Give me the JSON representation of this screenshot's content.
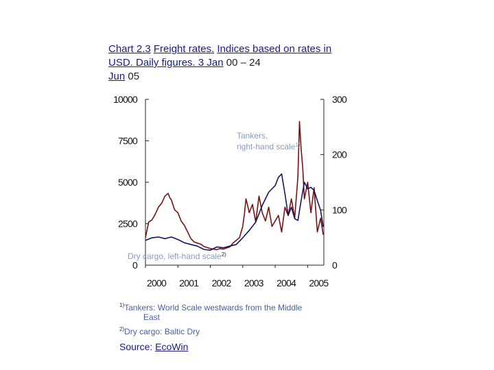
{
  "title": {
    "part1": "Chart 2.3",
    "part2": "Freight rates.",
    "part3": "Indices based on rates in USD. Daily figures. 3 Jan",
    "part4": "00 – 24",
    "part5": "Jun",
    "part6": "05"
  },
  "footnotes": {
    "f1_mark": "1)",
    "f1_text": "Tankers: World Scale westwards from the Middle",
    "f1_cont": "East",
    "f2_mark": "2)",
    "f2_text": "Dry cargo: Baltic Dry"
  },
  "source": {
    "label": "Source:",
    "name": "EcoWin"
  },
  "chart_data": {
    "type": "line",
    "y_left": {
      "ylim": [
        0,
        10000
      ],
      "ticks": [
        "0",
        "2500",
        "5000",
        "7500",
        "10000"
      ]
    },
    "y_right": {
      "ylim": [
        0,
        300
      ],
      "ticks": [
        "0",
        "100",
        "200",
        "300"
      ]
    },
    "x_ticks": [
      "2000",
      "2001",
      "2002",
      "2003",
      "2004",
      "2005"
    ],
    "xlim": [
      2000,
      2005.5
    ],
    "grid": false,
    "series": [
      {
        "name": "Tankers, right-hand scale",
        "name_sup": "1)",
        "axis": "right",
        "color": "#7a1010",
        "x": [
          2000.0,
          2000.1,
          2000.2,
          2000.3,
          2000.4,
          2000.5,
          2000.6,
          2000.7,
          2000.75,
          2000.8,
          2000.9,
          2001.0,
          2001.1,
          2001.2,
          2001.3,
          2001.4,
          2001.5,
          2001.6,
          2001.7,
          2001.8,
          2001.9,
          2002.0,
          2002.1,
          2002.2,
          2002.3,
          2002.4,
          2002.5,
          2002.6,
          2002.7,
          2002.8,
          2002.9,
          2003.0,
          2003.05,
          2003.1,
          2003.15,
          2003.2,
          2003.3,
          2003.4,
          2003.5,
          2003.6,
          2003.7,
          2003.8,
          2003.9,
          2004.0,
          2004.1,
          2004.2,
          2004.3,
          2004.4,
          2004.5,
          2004.6,
          2004.7,
          2004.75,
          2004.8,
          2004.85,
          2004.9,
          2005.0,
          2005.1,
          2005.2,
          2005.3,
          2005.4,
          2005.48
        ],
        "values": [
          50,
          78,
          82,
          92,
          105,
          112,
          125,
          130,
          122,
          118,
          100,
          95,
          80,
          72,
          60,
          48,
          42,
          40,
          38,
          34,
          32,
          30,
          29,
          28,
          30,
          29,
          31,
          33,
          40,
          45,
          50,
          70,
          92,
          120,
          108,
          95,
          110,
          78,
          125,
          95,
          80,
          105,
          70,
          80,
          90,
          60,
          105,
          90,
          120,
          85,
          160,
          260,
          210,
          175,
          120,
          150,
          95,
          140,
          60,
          85,
          55
        ]
      },
      {
        "name": "Dry cargo, left-hand scale",
        "name_sup": "2)",
        "axis": "left",
        "color": "#141460",
        "x": [
          2000.0,
          2000.2,
          2000.4,
          2000.6,
          2000.8,
          2001.0,
          2001.2,
          2001.4,
          2001.6,
          2001.8,
          2002.0,
          2002.2,
          2002.4,
          2002.6,
          2002.8,
          2003.0,
          2003.2,
          2003.4,
          2003.6,
          2003.8,
          2004.0,
          2004.1,
          2004.2,
          2004.3,
          2004.4,
          2004.5,
          2004.6,
          2004.7,
          2004.8,
          2004.9,
          2005.0,
          2005.1,
          2005.2,
          2005.3,
          2005.4,
          2005.48
        ],
        "values": [
          1500,
          1650,
          1700,
          1600,
          1700,
          1550,
          1350,
          1250,
          1150,
          950,
          900,
          1100,
          1050,
          1150,
          1250,
          1650,
          2100,
          2600,
          3600,
          4400,
          4800,
          5300,
          5500,
          4300,
          3000,
          3500,
          2800,
          2700,
          3900,
          5000,
          4600,
          4700,
          4500,
          3900,
          3300,
          2300
        ]
      }
    ]
  }
}
